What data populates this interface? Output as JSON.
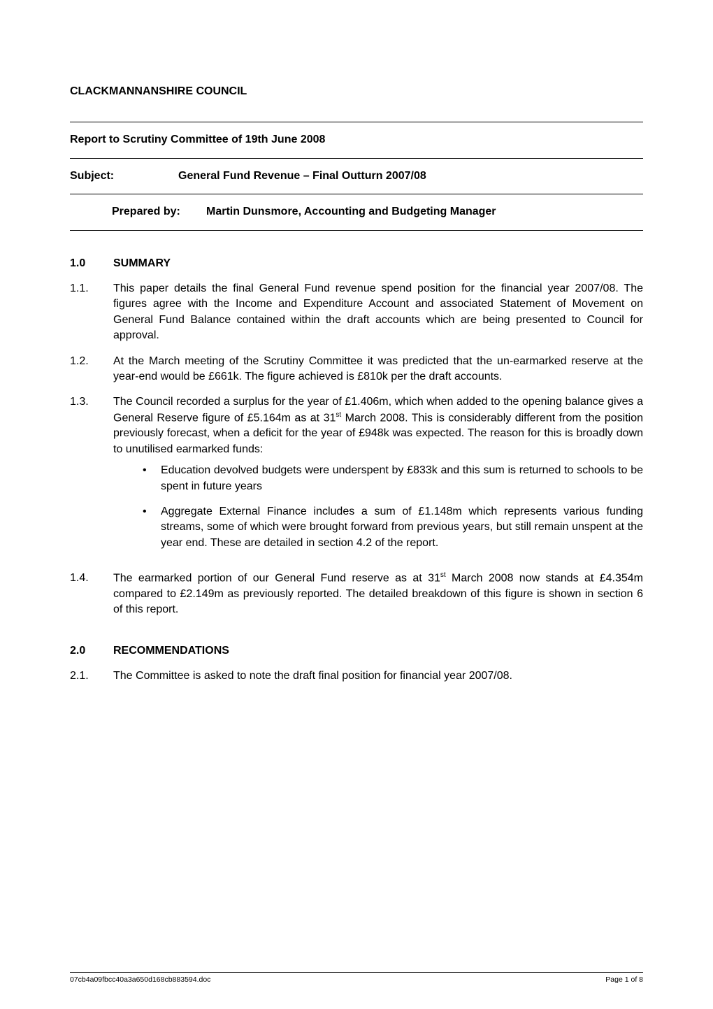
{
  "header": {
    "org": "CLACKMANNANSHIRE COUNCIL",
    "report_to": "Report to Scrutiny Committee of 19th June 2008",
    "subject_label": "Subject:",
    "subject_value": "General Fund Revenue – Final Outturn 2007/08",
    "prepared_label": "Prepared by:",
    "prepared_value": "Martin Dunsmore, Accounting and Budgeting Manager"
  },
  "sections": [
    {
      "num": "1.0",
      "title": "SUMMARY",
      "paras": [
        {
          "num": "1.1.",
          "text": "This paper details the final General Fund revenue spend position for the financial year 2007/08. The figures agree with the Income and Expenditure Account and associated Statement of Movement on General Fund Balance contained within the draft accounts which are being presented to Council for approval."
        },
        {
          "num": "1.2.",
          "text": "At the March meeting of the Scrutiny Committee it was predicted that the un-earmarked reserve at the year-end would be £661k. The figure achieved is £810k per the draft accounts."
        },
        {
          "num": "1.3.",
          "text_pre": "The Council recorded a surplus for the year of £1.406m, which when added to the opening balance gives a General Reserve figure of £5.164m as at 31",
          "sup": "st",
          "text_post": " March 2008. This is considerably different from the position previously forecast, when a deficit for the year of £948k was expected. The reason for this is broadly down to unutilised earmarked funds:",
          "bullets": [
            "Education devolved budgets were underspent by £833k and this sum is returned to schools to be spent in future years",
            "Aggregate External Finance includes a sum of £1.148m which represents various funding streams, some of which were brought forward from previous years, but still remain unspent at the year end. These are detailed in section 4.2 of the report."
          ]
        },
        {
          "num": "1.4.",
          "text_pre": "The earmarked portion of our General Fund reserve as at 31",
          "sup": "st",
          "text_post": " March 2008 now stands at £4.354m compared to £2.149m as previously reported. The detailed breakdown of this figure is shown in section 6 of this report."
        }
      ]
    },
    {
      "num": "2.0",
      "title": "RECOMMENDATIONS",
      "paras": [
        {
          "num": "2.1.",
          "text": "The Committee is asked to note the draft final position for financial year 2007/08."
        }
      ]
    }
  ],
  "footer": {
    "left": "07cb4a09fbcc40a3a650d168cb883594.doc",
    "right": "Page 1 of 8"
  }
}
